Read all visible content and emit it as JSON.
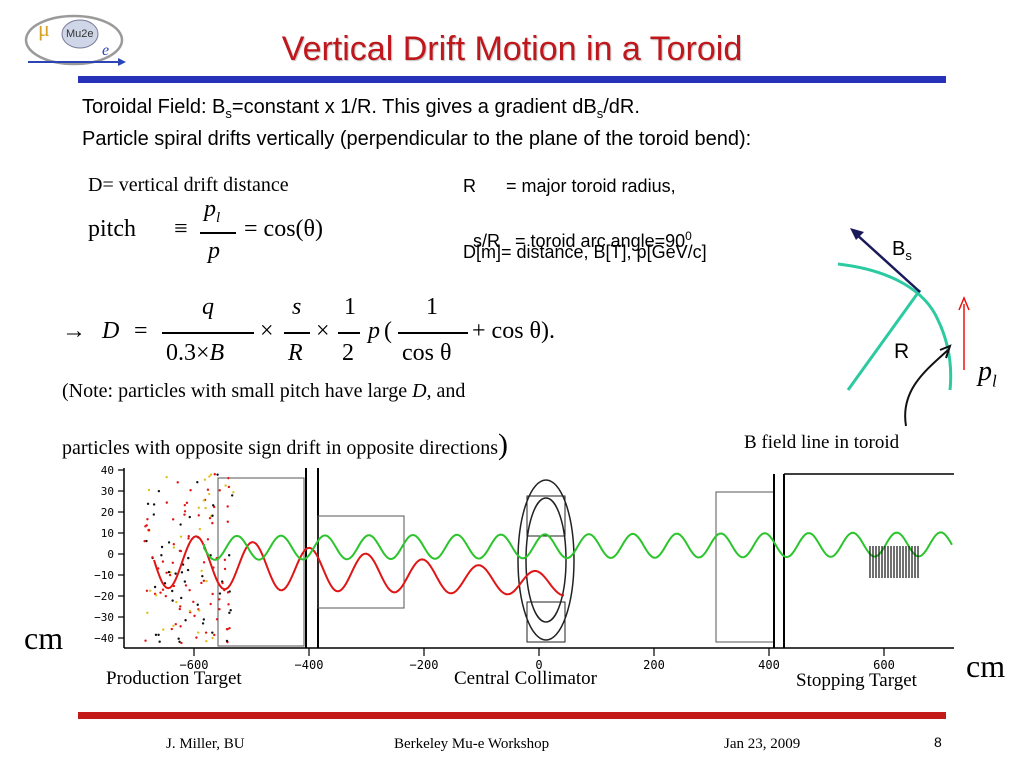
{
  "logo": {
    "text": "Mu2e",
    "mu": "μ",
    "e": "e"
  },
  "title": "Vertical Drift Motion in a Toroid",
  "intro": {
    "line1_a": "Toroidal Field: B",
    "line1_sub": "s",
    "line1_b": "=constant x 1/R. This gives a gradient dB",
    "line1_sub2": "s",
    "line1_c": "/dR.",
    "line2": "Particle spiral drifts vertically (perpendicular to the plane of the toroid bend):"
  },
  "definitions": {
    "d_def": "D= vertical drift distance",
    "r_def": "R      = major toroid radius,",
    "s_def_a": "s/R   = toroid arc angle=90",
    "s_def_sup": "0",
    "units": "D[m]= distance, B[T], p[GeV/c]"
  },
  "pitch_eq": {
    "lhs": "pitch",
    "equiv": "≡",
    "num": "p",
    "num_sub": "l",
    "den": "p",
    "rhs": "= cos(θ)"
  },
  "drift_eq": {
    "arrow": "→",
    "D": "D",
    "eq": "=",
    "q": "q",
    "b_den": "0.3×",
    "B": "B",
    "times1": "×",
    "s": "s",
    "R": "R",
    "times2": "×",
    "one": "1",
    "two": "2",
    "p": "p",
    "open": "(",
    "one2": "1",
    "cos_den": "cos θ",
    "tail": "+ cos θ)."
  },
  "notes": {
    "line1_a": "(Note: particles with small pitch have large ",
    "line1_D": "D,",
    "line1_b": " and",
    "line2": "particles with opposite sign drift in opposite directions",
    "close": ")"
  },
  "diagram": {
    "bs": "B",
    "bs_sub": "s",
    "r": "R",
    "pl": "p",
    "pl_sub": "l",
    "caption": "B field line in toroid"
  },
  "plot": {
    "y_ticks": [
      "40",
      "30",
      "20",
      "10",
      "0",
      "−10",
      "−20",
      "−30",
      "−40"
    ],
    "x_ticks": [
      "−600",
      "−400",
      "−200",
      "0",
      "200",
      "400",
      "600"
    ],
    "y_unit": "cm",
    "x_unit": "cm",
    "labels": {
      "production": "Production Target",
      "collimator": "Central Collimator",
      "stopping": "Stopping Target"
    },
    "colors": {
      "red_track": "#e01515",
      "green_track": "#2cc42c"
    }
  },
  "footer": {
    "author": "J. Miller, BU",
    "venue": "Berkeley Mu-e Workshop",
    "date": "Jan 23, 2009",
    "page": "8"
  },
  "colors": {
    "title": "#c0171d",
    "rule_top": "#2632b8",
    "rule_bottom": "#c41a1a"
  }
}
